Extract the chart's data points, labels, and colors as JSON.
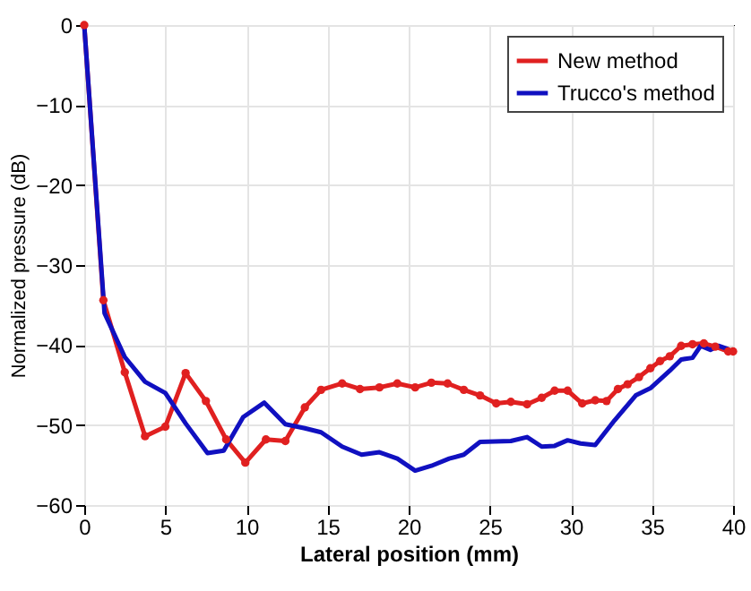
{
  "chart_data": {
    "type": "line",
    "xlabel": "Lateral position (mm)",
    "ylabel": "Normalized pressure (dB)",
    "xlim": [
      0,
      40
    ],
    "xticks": [
      0,
      5,
      10,
      15,
      20,
      25,
      30,
      35,
      40
    ],
    "ylim": [
      -60,
      0
    ],
    "yticks": [
      -60,
      -50,
      -40,
      -30,
      -20,
      -10,
      0
    ],
    "grid": true,
    "legend": "top right",
    "line_style": "solid",
    "series": [
      {
        "name": "New method",
        "color": "#e02020",
        "marker": "circle",
        "x": [
          0,
          1.18,
          2.5,
          3.75,
          5,
          6.25,
          7.5,
          8.75,
          9.93,
          11.2,
          12.4,
          13.6,
          14.6,
          15.9,
          17,
          18.2,
          19.3,
          20.4,
          21.4,
          22.4,
          23.4,
          24.4,
          25.4,
          26.3,
          27.3,
          28.2,
          29,
          29.8,
          30.7,
          31.5,
          32.2,
          32.9,
          33.5,
          34.2,
          34.9,
          35.5,
          36.1,
          36.8,
          37.5,
          38.2,
          38.9,
          39.7,
          40
        ],
        "values": [
          0,
          -34.4,
          -43.4,
          -51.4,
          -50.2,
          -43.5,
          -47,
          -51.8,
          -54.7,
          -51.8,
          -52,
          -47.8,
          -45.6,
          -44.8,
          -45.5,
          -45.3,
          -44.8,
          -45.3,
          -44.7,
          -44.8,
          -45.6,
          -46.3,
          -47.3,
          -47.1,
          -47.4,
          -46.6,
          -45.7,
          -45.7,
          -47.3,
          -46.9,
          -47,
          -45.5,
          -44.9,
          -44,
          -42.9,
          -42,
          -41.4,
          -40.1,
          -39.9,
          -39.8,
          -40.2,
          -40.8,
          -40.8
        ]
      },
      {
        "name": "Trucco's method",
        "color": "#1010c0",
        "marker": "none",
        "x": [
          0,
          1.25,
          2.5,
          3.75,
          5,
          6.25,
          7.6,
          8.6,
          9.8,
          11.1,
          12.4,
          13.6,
          14.6,
          15.9,
          17.1,
          18.2,
          19.3,
          20.4,
          21.4,
          22.5,
          23.4,
          24.4,
          26.3,
          27.3,
          28.2,
          29,
          29.8,
          30.6,
          31.5,
          32.7,
          34,
          34.9,
          36.1,
          36.8,
          37.5,
          38,
          38.6,
          39.1,
          39.7
        ],
        "values": [
          0,
          -36,
          -41.5,
          -44.6,
          -46,
          -49.8,
          -53.5,
          -53.2,
          -49,
          -47.2,
          -49.9,
          -50.4,
          -50.9,
          -52.7,
          -53.7,
          -53.4,
          -54.2,
          -55.7,
          -55.1,
          -54.2,
          -53.7,
          -52.1,
          -52,
          -51.5,
          -52.7,
          -52.6,
          -51.9,
          -52.3,
          -52.5,
          -49.4,
          -46.3,
          -45.4,
          -43.2,
          -41.8,
          -41.6,
          -40.1,
          -40.6,
          -40.1,
          -40.5
        ]
      }
    ]
  }
}
